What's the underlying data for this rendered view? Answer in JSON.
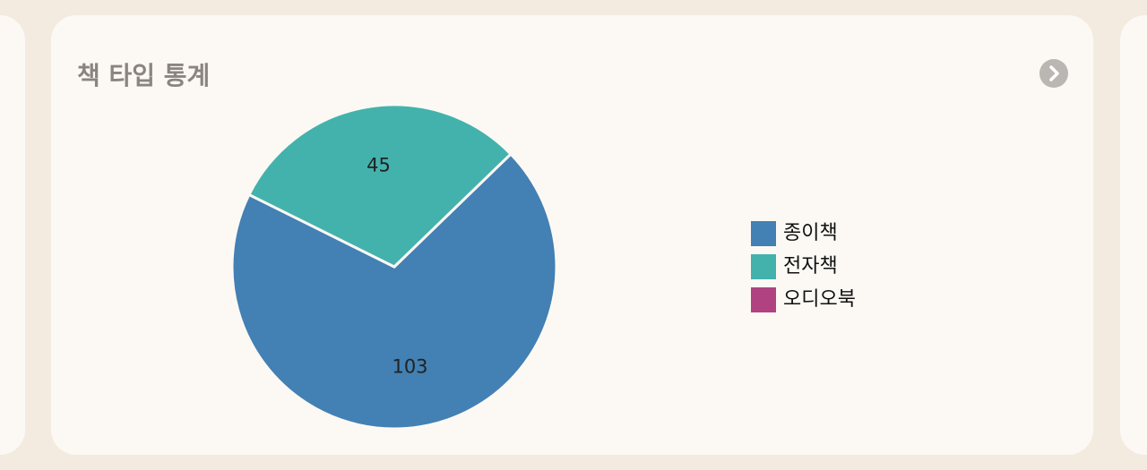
{
  "chart_data": {
    "type": "pie",
    "title": "책 타입 통계",
    "categories": [
      "종이책",
      "전자책",
      "오디오북"
    ],
    "values": [
      103,
      45,
      0
    ],
    "colors": [
      "#4380b3",
      "#43b2ac",
      "#b04282"
    ],
    "legend": "right"
  }
}
